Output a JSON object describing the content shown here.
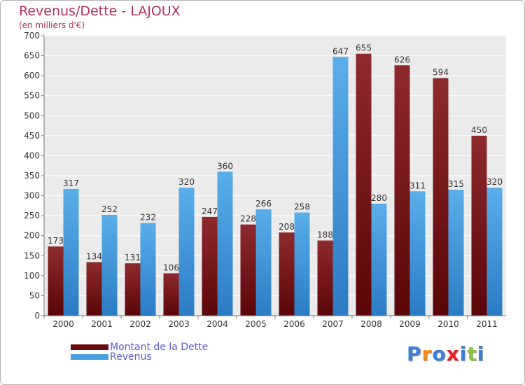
{
  "header": {
    "title": "Revenus/Dette - LAJOUX",
    "subtitle": "(en milliers d'€)"
  },
  "legend": {
    "items": [
      {
        "label": "Montant de la Dette",
        "color": "#6b0e12"
      },
      {
        "label": "Revenus",
        "color": "#4a9fe0"
      }
    ]
  },
  "logo": {
    "text": "Proxiti",
    "letter_colors": [
      "#3a7fd5",
      "#f28a1c",
      "#3a7fd5",
      "#e8202a",
      "#3a7fd5",
      "#8cc63f",
      "#3a7fd5"
    ]
  },
  "chart_data": {
    "type": "bar",
    "categories": [
      "2000",
      "2001",
      "2002",
      "2003",
      "2004",
      "2005",
      "2006",
      "2007",
      "2008",
      "2009",
      "2010",
      "2011"
    ],
    "series": [
      {
        "name": "Montant de la Dette",
        "color": "#6b0e12",
        "values": [
          173,
          134,
          131,
          106,
          247,
          228,
          208,
          188,
          655,
          626,
          594,
          450
        ]
      },
      {
        "name": "Revenus",
        "color": "#4a9fe0",
        "values": [
          317,
          252,
          232,
          320,
          360,
          266,
          258,
          647,
          280,
          311,
          315,
          320
        ]
      }
    ],
    "ylim": [
      0,
      700
    ],
    "yticks": [
      0,
      50,
      100,
      150,
      200,
      250,
      300,
      350,
      400,
      450,
      500,
      550,
      600,
      650,
      700
    ],
    "grid": true,
    "legend_position": "bottom-left"
  }
}
